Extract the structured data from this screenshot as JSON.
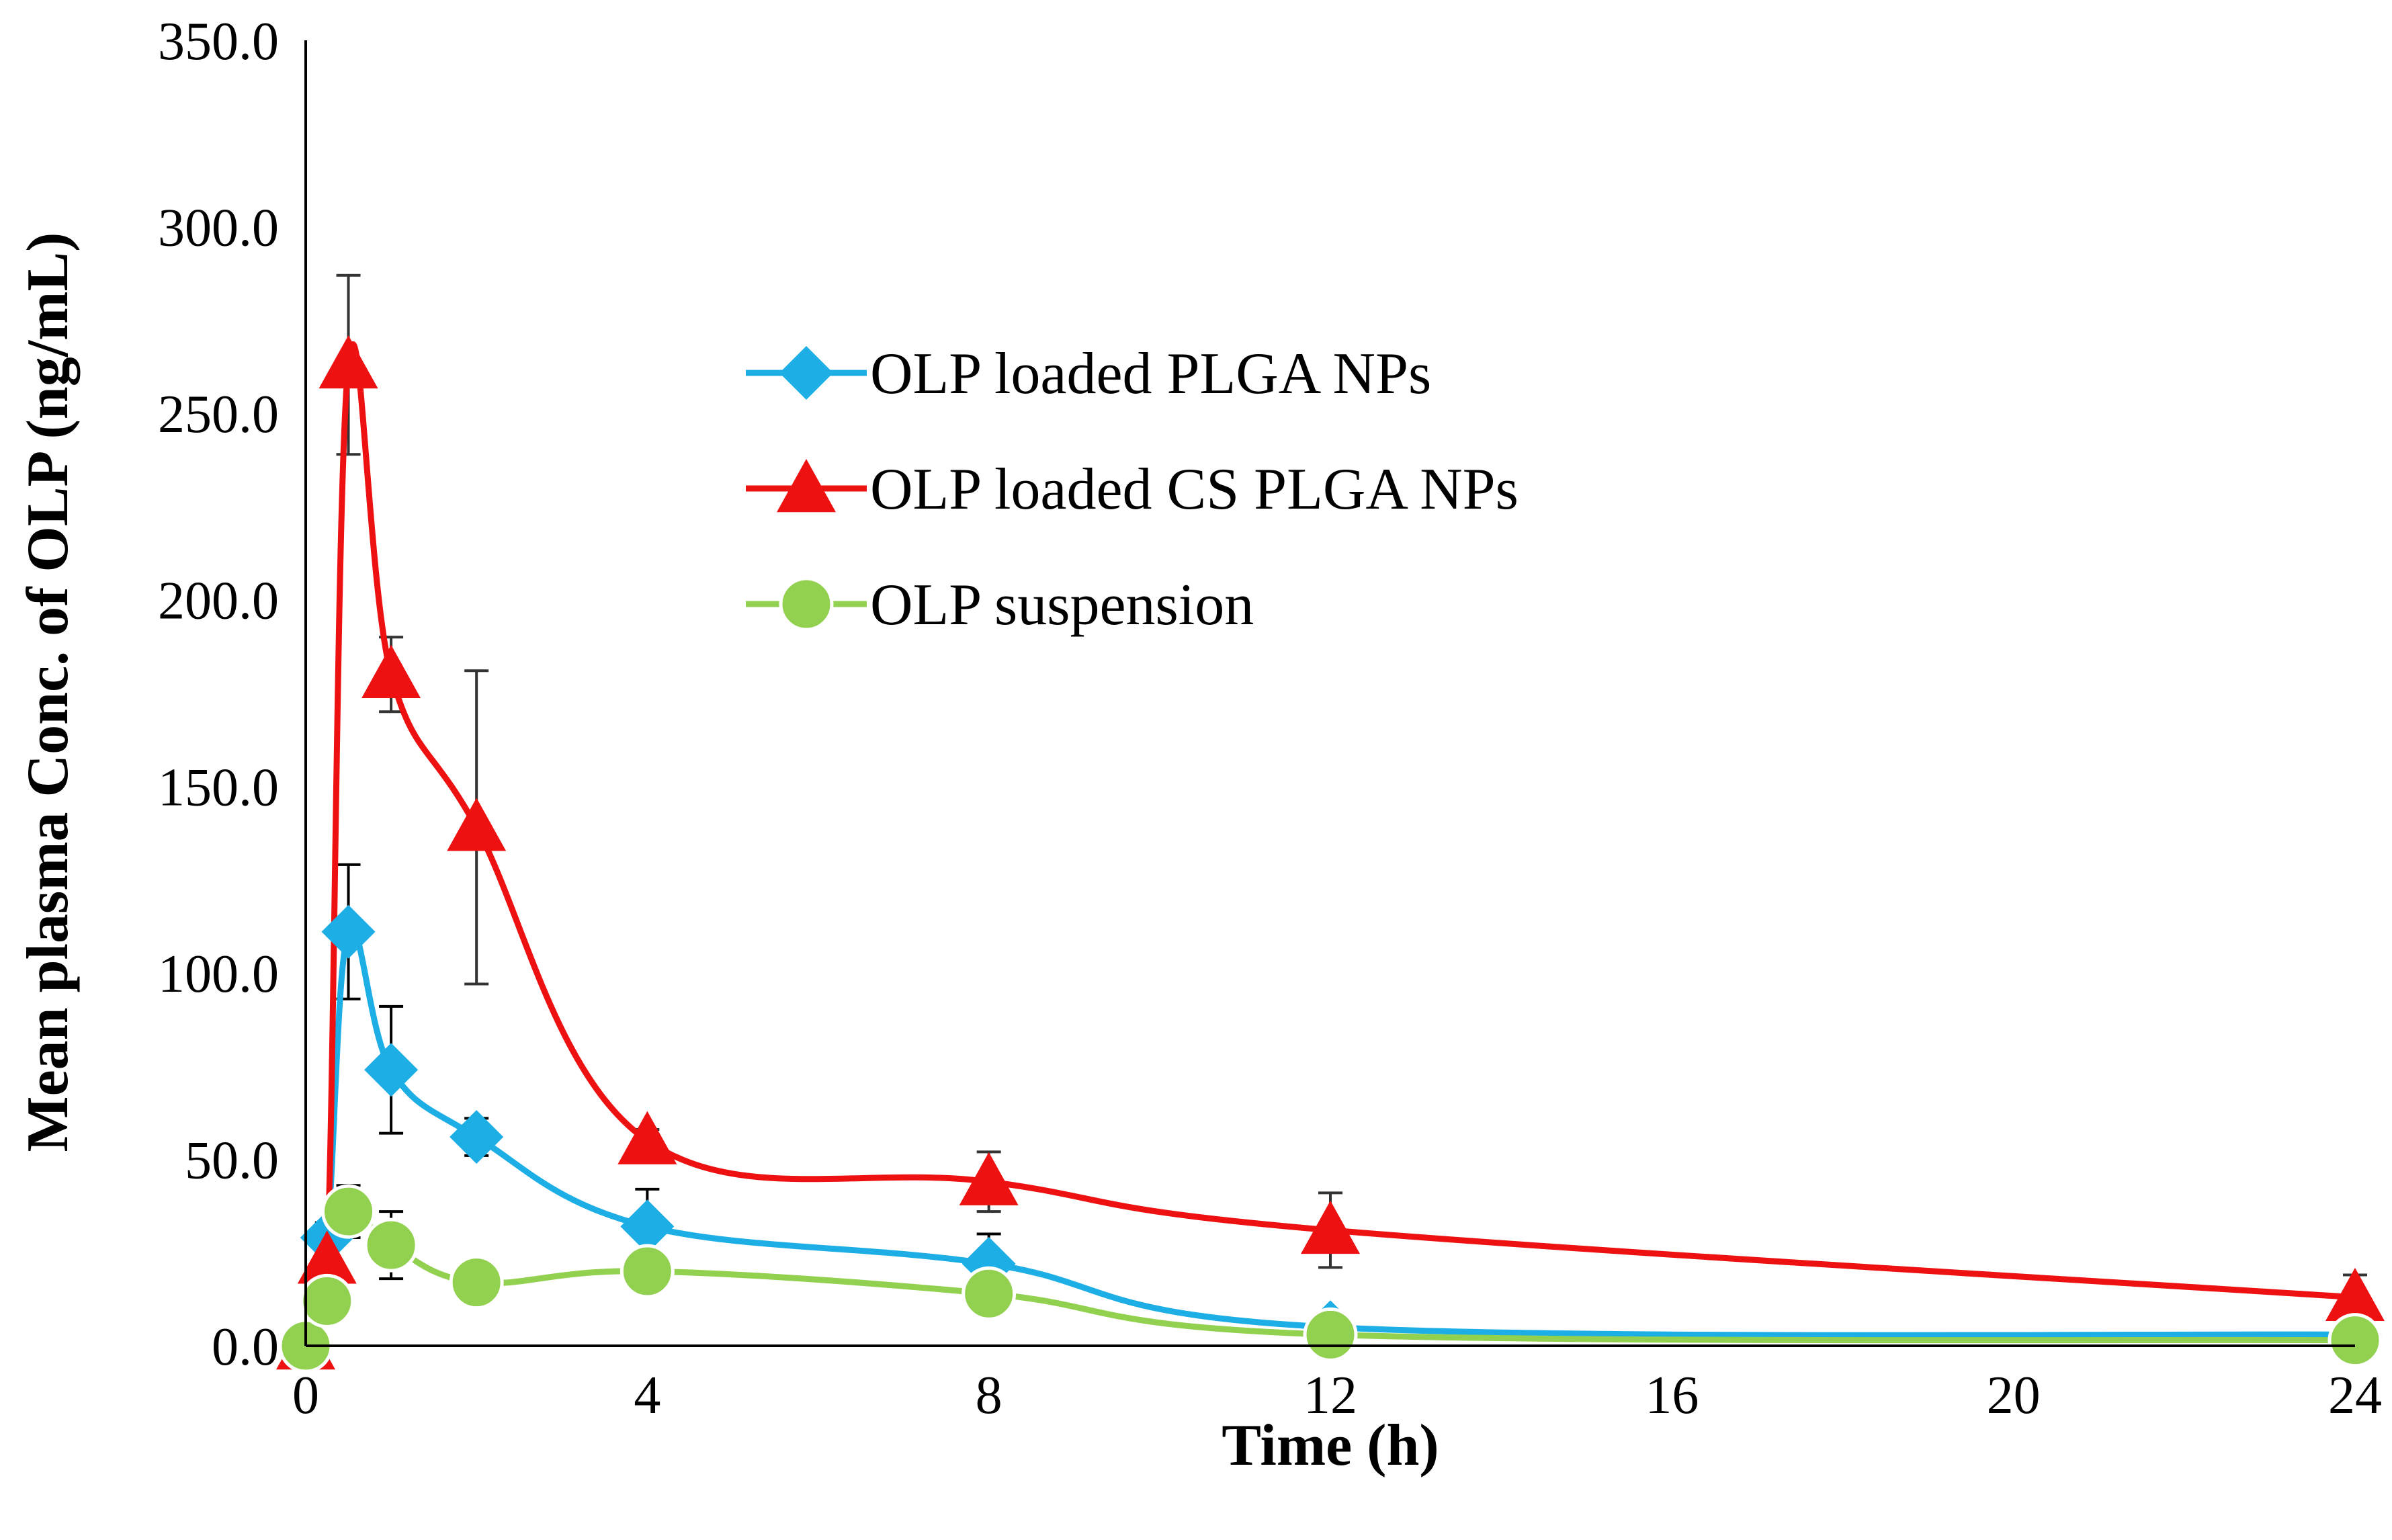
{
  "chart_data": {
    "type": "line",
    "title": "",
    "xlabel": "Time (h)",
    "ylabel": "Mean plasma Conc. of OLP  (ng/mL)",
    "xlim": [
      0,
      24
    ],
    "ylim": [
      0,
      350
    ],
    "xticks": [
      0,
      4,
      8,
      12,
      16,
      20,
      24
    ],
    "xtick_labels": [
      "0",
      "4",
      "8",
      "12",
      "16",
      "20",
      "24"
    ],
    "yticks": [
      0,
      50,
      100,
      150,
      200,
      250,
      300,
      350
    ],
    "ytick_labels": [
      "0.0",
      "50.0",
      "100.0",
      "150.0",
      "200.0",
      "250.0",
      "300.0",
      "350.0"
    ],
    "grid": false,
    "legend_position": "upper-center",
    "x": [
      0,
      0.25,
      0.5,
      1,
      2,
      4,
      8,
      12,
      24
    ],
    "series": [
      {
        "name": "OLP loaded PLGA NPs",
        "color": "#1CAEE5",
        "marker": "diamond",
        "values": [
          0,
          29,
          111,
          74,
          56,
          32,
          22,
          5,
          3
        ],
        "errors": [
          0,
          4,
          18,
          17,
          5,
          10,
          8,
          0,
          0
        ],
        "error_color": "#000000"
      },
      {
        "name": "OLP loaded CS PLGA NPs",
        "color": "#EE1111",
        "marker": "triangle",
        "values": [
          0,
          23,
          263,
          180,
          139,
          55,
          44,
          31,
          13
        ],
        "errors": [
          0,
          0,
          24,
          10,
          42,
          3,
          8,
          10,
          6
        ],
        "error_color": "#333333"
      },
      {
        "name": "OLP suspension",
        "color": "#92D050",
        "marker": "circle",
        "values": [
          0,
          12,
          36,
          27,
          17,
          20,
          14,
          3,
          1.5
        ],
        "errors": [
          0,
          0,
          7,
          9,
          3,
          0,
          0,
          0,
          0
        ],
        "error_color": "#000000"
      }
    ]
  }
}
